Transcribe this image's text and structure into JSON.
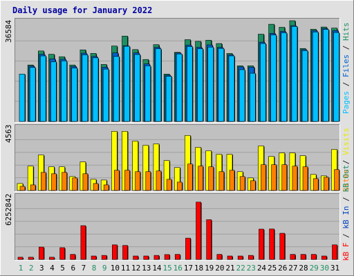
{
  "chart_data": {
    "type": "bar",
    "title": "Daily usage for January 2022",
    "days": [
      "1",
      "2",
      "3",
      "4",
      "5",
      "6",
      "7",
      "8",
      "9",
      "10",
      "11",
      "12",
      "13",
      "14",
      "15",
      "16",
      "17",
      "18",
      "19",
      "20",
      "21",
      "22",
      "23",
      "24",
      "25",
      "26",
      "27",
      "28",
      "29",
      "30",
      "31"
    ],
    "weekend_days": [
      "1",
      "2",
      "8",
      "9",
      "15",
      "16",
      "22",
      "23",
      "29",
      "30"
    ],
    "hits_scale_label": "36584",
    "sites_scale_label": "4563",
    "kb_scale_label": "6252842",
    "hits_max": 36584,
    "sites_max": 4563,
    "kb_max": 6252842,
    "hits_legend": [
      {
        "text": "Pages",
        "color": "#00C0FF"
      },
      {
        "text": " / ",
        "color": "#202020"
      },
      {
        "text": "Files",
        "color": "#0060D0"
      },
      {
        "text": " / ",
        "color": "#202020"
      },
      {
        "text": "Hits",
        "color": "#1E8F62"
      }
    ],
    "sites_legend": [
      {
        "text": "Sites",
        "color": "#FF8000"
      },
      {
        "text": " / ",
        "color": "#202020"
      },
      {
        "text": "Visits",
        "color": "#E8E800"
      }
    ],
    "kb_legend": [
      {
        "text": "kB F",
        "color": "#FF0000"
      },
      {
        "text": " / ",
        "color": "#202020"
      },
      {
        "text": "kB In",
        "color": "#0040C0"
      },
      {
        "text": " / ",
        "color": "#202020"
      },
      {
        "text": "kB Out",
        "color": "#1E8F62"
      }
    ],
    "hits": [
      0,
      20500,
      25600,
      24400,
      23500,
      20500,
      26000,
      24700,
      20700,
      27400,
      31000,
      26100,
      22500,
      27900,
      17200,
      25100,
      29700,
      29100,
      29500,
      28300,
      24700,
      20200,
      20200,
      31700,
      35300,
      34200,
      36584,
      26500,
      33500,
      34300,
      33900
    ],
    "files": [
      0,
      20100,
      24400,
      22700,
      22600,
      20000,
      24800,
      23600,
      19700,
      24900,
      27500,
      24900,
      20900,
      26900,
      16800,
      24900,
      27700,
      26900,
      27800,
      26900,
      24200,
      19800,
      19700,
      28800,
      32000,
      32700,
      34800,
      26100,
      33000,
      33800,
      33000
    ],
    "pages": [
      17200,
      19600,
      23800,
      21700,
      22000,
      19400,
      24200,
      23100,
      19000,
      23600,
      27300,
      24300,
      20200,
      26400,
      16400,
      24500,
      27200,
      26400,
      27000,
      26500,
      23800,
      18800,
      17500,
      28300,
      31400,
      32200,
      34500,
      25700,
      32500,
      33400,
      32300
    ],
    "visits": [
      500,
      1750,
      2550,
      1700,
      1700,
      1000,
      2050,
      800,
      750,
      4250,
      4250,
      3550,
      3250,
      3350,
      2150,
      1650,
      3950,
      3100,
      2850,
      2600,
      2600,
      1350,
      900,
      3200,
      2450,
      2700,
      2700,
      2500,
      1150,
      1050,
      2950
    ],
    "sites": [
      300,
      400,
      1300,
      1200,
      1300,
      900,
      1200,
      500,
      400,
      1450,
      1450,
      1350,
      1350,
      1400,
      800,
      600,
      1900,
      1750,
      1700,
      1350,
      1450,
      1000,
      700,
      1850,
      1850,
      1850,
      1750,
      1700,
      850,
      950,
      1500
    ],
    "kbf": [
      220000,
      220000,
      1220000,
      220000,
      1160000,
      500000,
      3330000,
      340000,
      400000,
      1440000,
      1380000,
      340000,
      340000,
      400000,
      480000,
      500000,
      2100000,
      5650000,
      3920000,
      500000,
      340000,
      340000,
      400000,
      2990000,
      3000000,
      2580000,
      500000,
      500000,
      500000,
      340000,
      1440000
    ]
  }
}
